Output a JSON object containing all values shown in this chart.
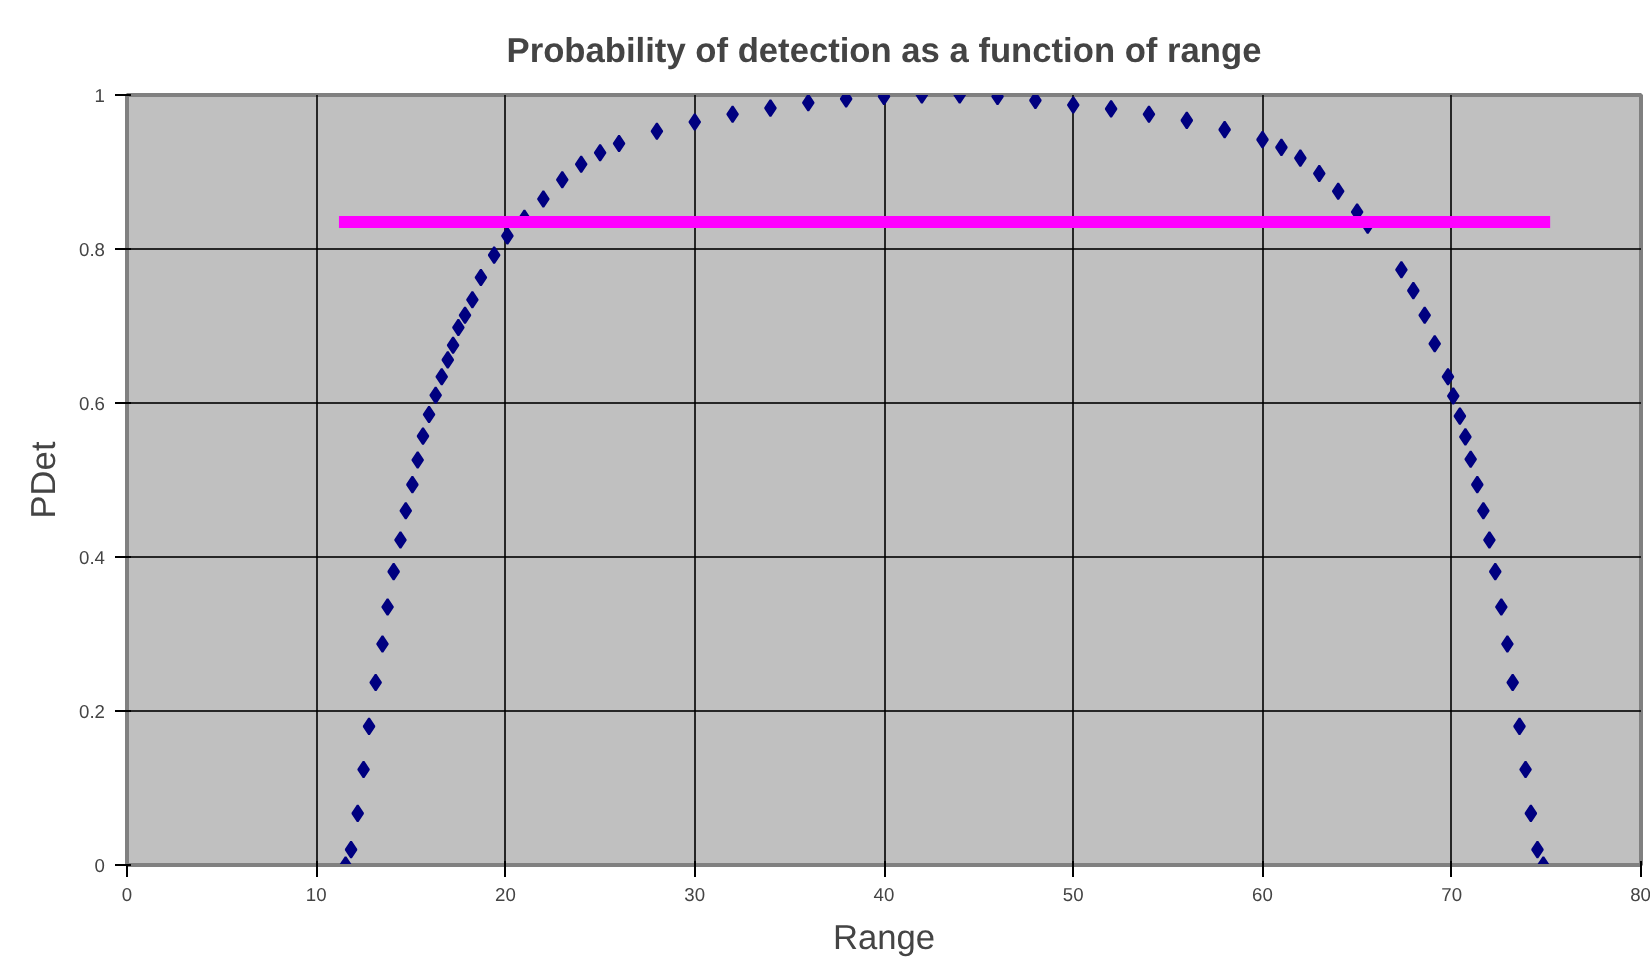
{
  "chart_data": {
    "type": "scatter",
    "title": "Probability of detection as a function of range",
    "xlabel": "Range",
    "ylabel": "PDet",
    "xlim": [
      0,
      80
    ],
    "xticks": [
      0,
      10,
      20,
      30,
      40,
      50,
      60,
      70,
      80
    ],
    "ylim": [
      0,
      1
    ],
    "yticks": [
      0,
      0.2,
      0.4,
      0.6,
      0.8,
      1
    ],
    "grid": true,
    "series": [
      {
        "marker": "diamond",
        "color": "#000080",
        "x": [
          11.55,
          11.84,
          12.19,
          12.5,
          12.79,
          13.14,
          13.5,
          13.77,
          14.09,
          14.45,
          14.73,
          15.08,
          15.36,
          15.64,
          15.96,
          16.31,
          16.63,
          16.95,
          17.23,
          17.51,
          17.86,
          18.25,
          18.7,
          19.4,
          20.1,
          21,
          22,
          23,
          24,
          25,
          26,
          28,
          30,
          32,
          34,
          36,
          38,
          40,
          42,
          44,
          46,
          48,
          50,
          52,
          54,
          56,
          58,
          60,
          61,
          62,
          63,
          64,
          65,
          65.56,
          67.34,
          67.97,
          68.57,
          69.1,
          69.8,
          70.08,
          70.43,
          70.72,
          71.0,
          71.35,
          71.67,
          71.99,
          72.3,
          72.62,
          72.94,
          73.22,
          73.58,
          73.9,
          74.18,
          74.53,
          74.84
        ],
        "values": [
          0.0,
          0.02,
          0.067,
          0.124,
          0.18,
          0.237,
          0.287,
          0.335,
          0.381,
          0.422,
          0.46,
          0.494,
          0.526,
          0.557,
          0.585,
          0.61,
          0.634,
          0.656,
          0.675,
          0.698,
          0.714,
          0.734,
          0.763,
          0.792,
          0.817,
          0.84,
          0.865,
          0.89,
          0.91,
          0.925,
          0.937,
          0.953,
          0.965,
          0.975,
          0.983,
          0.99,
          0.995,
          0.998,
          1.0,
          1.0,
          0.998,
          0.993,
          0.987,
          0.982,
          0.975,
          0.967,
          0.955,
          0.942,
          0.932,
          0.918,
          0.898,
          0.875,
          0.848,
          0.831,
          0.773,
          0.746,
          0.714,
          0.677,
          0.634,
          0.609,
          0.583,
          0.556,
          0.527,
          0.494,
          0.46,
          0.422,
          0.381,
          0.335,
          0.287,
          0.237,
          0.18,
          0.124,
          0.067,
          0.02,
          0.0
        ]
      },
      {
        "type": "line",
        "marker": "none",
        "color": "#ff00ff",
        "x": [
          11.2,
          75.2
        ],
        "values": [
          0.835,
          0.835
        ]
      }
    ]
  }
}
